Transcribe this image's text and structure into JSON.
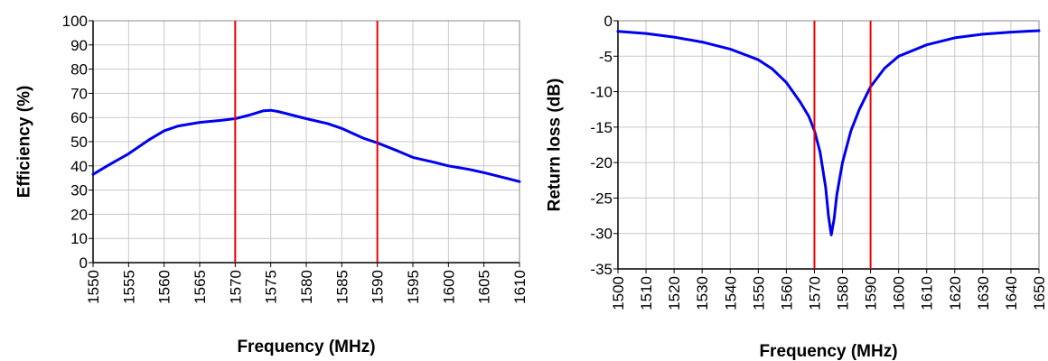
{
  "colors": {
    "series": "#0000ee",
    "marker": "#ee0000",
    "grid": "#c8c8c8",
    "axis": "#000000"
  },
  "chart_data": [
    {
      "type": "line",
      "title": "",
      "xlabel": "Frequency (MHz)",
      "ylabel": "Efficiency (%)",
      "xlim": [
        1550,
        1610
      ],
      "ylim": [
        0,
        100
      ],
      "xticks": [
        "1550",
        "1555",
        "1560",
        "1565",
        "1570",
        "1575",
        "1580",
        "1585",
        "1590",
        "1595",
        "1600",
        "1605",
        "1610"
      ],
      "yticks": [
        "0",
        "10",
        "20",
        "30",
        "40",
        "50",
        "60",
        "70",
        "80",
        "90",
        "100"
      ],
      "grid": true,
      "legend": "none",
      "markers": [
        1570,
        1590
      ],
      "series": [
        {
          "x": [
            1550,
            1552,
            1555,
            1558,
            1560,
            1562,
            1565,
            1568,
            1570,
            1572,
            1574,
            1575,
            1576,
            1578,
            1580,
            1583,
            1585,
            1588,
            1590,
            1593,
            1595,
            1598,
            1600,
            1603,
            1605,
            1608,
            1610
          ],
          "y": [
            36.5,
            40,
            45,
            51,
            54.5,
            56.5,
            58,
            58.8,
            59.5,
            61,
            62.8,
            63,
            62.5,
            61,
            59.5,
            57.5,
            55.5,
            51.5,
            49.5,
            46,
            43.5,
            41.5,
            40,
            38.5,
            37.2,
            35,
            33.5
          ]
        }
      ]
    },
    {
      "type": "line",
      "title": "",
      "xlabel": "Frequency (MHz)",
      "ylabel": "Return loss (dB)",
      "xlim": [
        1500,
        1650
      ],
      "ylim": [
        -35,
        0
      ],
      "xticks": [
        "1500",
        "1510",
        "1520",
        "1530",
        "1540",
        "1550",
        "1560",
        "1570",
        "1580",
        "1590",
        "1600",
        "1610",
        "1620",
        "1630",
        "1640",
        "1650"
      ],
      "yticks": [
        "0",
        "-5",
        "-10",
        "-15",
        "-20",
        "-25",
        "-30",
        "-35"
      ],
      "grid": true,
      "legend": "none",
      "markers": [
        1570,
        1590
      ],
      "series": [
        {
          "x": [
            1500,
            1510,
            1520,
            1530,
            1540,
            1550,
            1555,
            1560,
            1565,
            1568,
            1570,
            1572,
            1574,
            1575,
            1576,
            1577,
            1578,
            1580,
            1583,
            1586,
            1590,
            1595,
            1600,
            1610,
            1620,
            1630,
            1640,
            1650
          ],
          "y": [
            -1.5,
            -1.8,
            -2.3,
            -3.0,
            -4.0,
            -5.5,
            -6.8,
            -8.7,
            -11.5,
            -13.5,
            -15.5,
            -18.5,
            -23.5,
            -27.5,
            -30.2,
            -28.0,
            -24.5,
            -20.0,
            -15.5,
            -12.5,
            -9.3,
            -6.7,
            -5.0,
            -3.4,
            -2.4,
            -1.9,
            -1.6,
            -1.4
          ]
        }
      ]
    }
  ]
}
